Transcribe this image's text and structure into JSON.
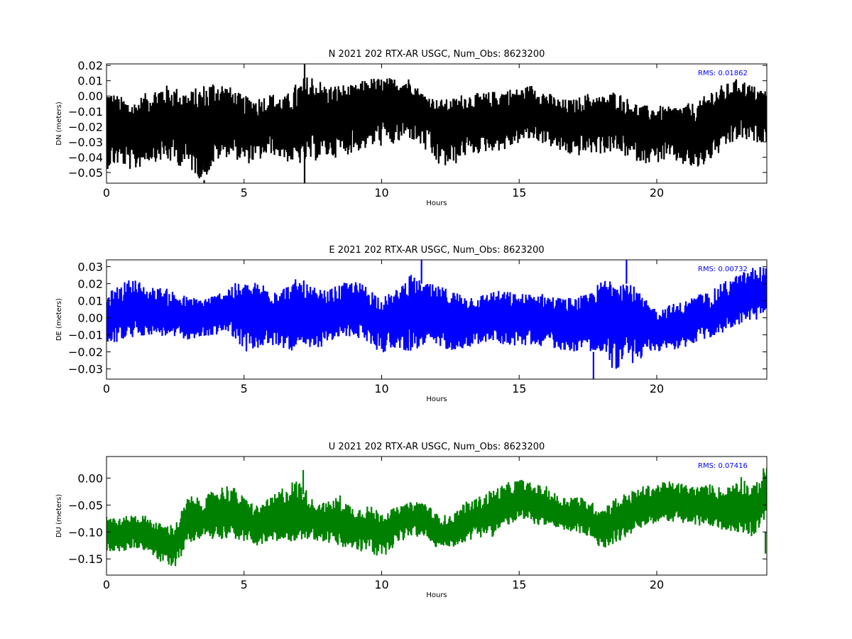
{
  "chart_data": [
    {
      "type": "line",
      "title": "N 2021 202 RTX-AR  USGC, Num_Obs: 8623200",
      "xlabel": "Hours",
      "ylabel": "DN (meters)",
      "xlim": [
        0,
        24
      ],
      "ylim": [
        -0.057,
        0.021
      ],
      "xticks": [
        0,
        5,
        10,
        15,
        20
      ],
      "xtick_labels": [
        "0",
        "5",
        "10",
        "15",
        "20"
      ],
      "yticks": [
        -0.05,
        -0.04,
        -0.03,
        -0.02,
        -0.01,
        0.0,
        0.01,
        0.02
      ],
      "ytick_labels": [
        "−0.05",
        "−0.04",
        "−0.03",
        "−0.02",
        "−0.01",
        "0.00",
        "0.01",
        "0.02"
      ],
      "annotation": "RMS:  0.01862",
      "annotation_color": "#0000ff",
      "series_color": "#000000",
      "grid": false,
      "x": [
        0,
        0.5,
        1,
        1.5,
        2,
        2.5,
        3,
        3.5,
        4,
        4.5,
        5,
        5.5,
        6,
        6.5,
        7,
        7.5,
        8,
        8.5,
        9,
        9.5,
        10,
        10.5,
        11,
        11.5,
        12,
        12.5,
        13,
        13.5,
        14,
        14.5,
        15,
        15.5,
        16,
        16.5,
        17,
        17.5,
        18,
        18.5,
        19,
        19.5,
        20,
        20.5,
        21,
        21.5,
        22,
        22.5,
        23,
        23.5,
        24
      ],
      "y_center": [
        -0.02,
        -0.022,
        -0.025,
        -0.02,
        -0.017,
        -0.016,
        -0.02,
        -0.025,
        -0.018,
        -0.014,
        -0.02,
        -0.022,
        -0.018,
        -0.02,
        -0.022,
        -0.016,
        -0.014,
        -0.013,
        -0.011,
        -0.007,
        -0.005,
        -0.006,
        -0.003,
        -0.008,
        -0.015,
        -0.018,
        -0.016,
        -0.016,
        -0.016,
        -0.013,
        -0.01,
        -0.01,
        -0.014,
        -0.018,
        -0.018,
        -0.016,
        -0.015,
        -0.016,
        -0.02,
        -0.023,
        -0.023,
        -0.022,
        -0.024,
        -0.025,
        -0.016,
        -0.012,
        -0.006,
        -0.01,
        -0.012
      ],
      "y_upper": [
        0.005,
        0.0,
        -0.003,
        0.003,
        0.008,
        0.006,
        0.003,
        0.008,
        0.012,
        0.006,
        0.0,
        0.0,
        0.002,
        0.0,
        0.011,
        0.015,
        0.007,
        0.008,
        0.007,
        0.012,
        0.012,
        0.012,
        0.012,
        0.002,
        -0.002,
        -0.002,
        0.002,
        0.002,
        0.003,
        0.005,
        0.005,
        0.008,
        0.003,
        -0.002,
        -0.002,
        0.002,
        0.0,
        0.004,
        -0.002,
        -0.006,
        -0.006,
        -0.007,
        -0.005,
        -0.004,
        0.005,
        0.008,
        0.012,
        0.007,
        0.004
      ],
      "y_lower": [
        -0.048,
        -0.045,
        -0.05,
        -0.043,
        -0.043,
        -0.045,
        -0.048,
        -0.056,
        -0.043,
        -0.039,
        -0.045,
        -0.043,
        -0.038,
        -0.043,
        -0.045,
        -0.043,
        -0.041,
        -0.04,
        -0.037,
        -0.035,
        -0.033,
        -0.033,
        -0.028,
        -0.035,
        -0.046,
        -0.048,
        -0.04,
        -0.038,
        -0.036,
        -0.036,
        -0.031,
        -0.029,
        -0.032,
        -0.037,
        -0.04,
        -0.038,
        -0.038,
        -0.037,
        -0.041,
        -0.044,
        -0.044,
        -0.042,
        -0.046,
        -0.049,
        -0.042,
        -0.035,
        -0.029,
        -0.031,
        -0.03
      ],
      "spikes": [
        {
          "x": 3.55,
          "y0": -0.055,
          "y1": -0.057
        },
        {
          "x": 7.2,
          "y0": -0.057,
          "y1": 0.021
        }
      ]
    },
    {
      "type": "line",
      "title": "E 2021 202 RTX-AR  USGC, Num_Obs: 8623200",
      "xlabel": "Hours",
      "ylabel": "DE (meters)",
      "xlim": [
        0,
        24
      ],
      "ylim": [
        -0.036,
        0.034
      ],
      "xticks": [
        0,
        5,
        10,
        15,
        20
      ],
      "xtick_labels": [
        "0",
        "5",
        "10",
        "15",
        "20"
      ],
      "yticks": [
        -0.03,
        -0.02,
        -0.01,
        0.0,
        0.01,
        0.02,
        0.03
      ],
      "ytick_labels": [
        "−0.03",
        "−0.02",
        "−0.01",
        "0.00",
        "0.01",
        "0.02",
        "0.03"
      ],
      "annotation": "RMS:  0.00732",
      "annotation_color": "#0000ff",
      "series_color": "#0000ff",
      "grid": false,
      "x": [
        0,
        0.5,
        1,
        1.5,
        2,
        2.5,
        3,
        3.5,
        4,
        4.5,
        5,
        5.5,
        6,
        6.5,
        7,
        7.5,
        8,
        8.5,
        9,
        9.5,
        10,
        10.5,
        11,
        11.5,
        12,
        12.5,
        13,
        13.5,
        14,
        14.5,
        15,
        15.5,
        16,
        16.5,
        17,
        17.5,
        18,
        18.5,
        19,
        19.5,
        20,
        20.5,
        21,
        21.5,
        22,
        22.5,
        23,
        23.5,
        24
      ],
      "y_center": [
        0.0,
        0.002,
        0.004,
        0.003,
        0.002,
        0.0,
        -0.001,
        0.0,
        0.002,
        0.004,
        0.0,
        0.001,
        0.0,
        0.0,
        -0.001,
        -0.002,
        0.0,
        0.004,
        0.005,
        0.002,
        -0.002,
        0.001,
        0.003,
        0.002,
        0.001,
        0.0,
        -0.001,
        0.0,
        0.002,
        0.001,
        0.0,
        0.001,
        0.0,
        -0.002,
        -0.002,
        0.0,
        0.003,
        0.002,
        0.0,
        -0.003,
        -0.006,
        -0.005,
        -0.004,
        -0.002,
        0.0,
        0.005,
        0.008,
        0.012,
        0.014
      ],
      "y_upper": [
        0.014,
        0.02,
        0.024,
        0.018,
        0.018,
        0.016,
        0.012,
        0.012,
        0.014,
        0.02,
        0.021,
        0.021,
        0.02,
        0.019,
        0.024,
        0.018,
        0.016,
        0.02,
        0.022,
        0.019,
        0.012,
        0.016,
        0.026,
        0.021,
        0.019,
        0.017,
        0.014,
        0.013,
        0.016,
        0.016,
        0.014,
        0.015,
        0.014,
        0.012,
        0.012,
        0.014,
        0.022,
        0.026,
        0.022,
        0.012,
        0.005,
        0.008,
        0.01,
        0.014,
        0.016,
        0.022,
        0.026,
        0.03,
        0.031
      ],
      "y_lower": [
        -0.016,
        -0.014,
        -0.012,
        -0.01,
        -0.011,
        -0.012,
        -0.013,
        -0.012,
        -0.01,
        -0.009,
        -0.02,
        -0.019,
        -0.017,
        -0.018,
        -0.021,
        -0.019,
        -0.016,
        -0.012,
        -0.011,
        -0.015,
        -0.021,
        -0.018,
        -0.02,
        -0.018,
        -0.017,
        -0.019,
        -0.018,
        -0.016,
        -0.014,
        -0.016,
        -0.017,
        -0.016,
        -0.017,
        -0.019,
        -0.02,
        -0.018,
        -0.026,
        -0.031,
        -0.028,
        -0.024,
        -0.02,
        -0.019,
        -0.018,
        -0.014,
        -0.012,
        -0.008,
        -0.004,
        -0.002,
        0.0
      ],
      "spikes": [
        {
          "x": 11.45,
          "y0": 0.02,
          "y1": 0.034
        },
        {
          "x": 17.7,
          "y0": -0.02,
          "y1": -0.036
        },
        {
          "x": 18.9,
          "y0": 0.02,
          "y1": 0.034
        }
      ]
    },
    {
      "type": "line",
      "title": "U 2021 202 RTX-AR  USGC, Num_Obs: 8623200",
      "xlabel": "Hours",
      "ylabel": "DU (meters)",
      "xlim": [
        0,
        24
      ],
      "ylim": [
        -0.18,
        0.04
      ],
      "xticks": [
        0,
        5,
        10,
        15,
        20
      ],
      "xtick_labels": [
        "0",
        "5",
        "10",
        "15",
        "20"
      ],
      "yticks": [
        -0.15,
        -0.1,
        -0.05,
        0.0
      ],
      "ytick_labels": [
        "−0.15",
        "−0.10",
        "−0.05",
        "0.00"
      ],
      "annotation": "RMS:  0.07416",
      "annotation_color": "#0000ff",
      "series_color": "#008000",
      "grid": false,
      "x": [
        0,
        0.5,
        1,
        1.5,
        2,
        2.5,
        3,
        3.5,
        4,
        4.5,
        5,
        5.5,
        6,
        6.5,
        7,
        7.5,
        8,
        8.5,
        9,
        9.5,
        10,
        10.5,
        11,
        11.5,
        12,
        12.5,
        13,
        13.5,
        14,
        14.5,
        15,
        15.5,
        16,
        16.5,
        17,
        17.5,
        18,
        18.5,
        19,
        19.5,
        20,
        20.5,
        21,
        21.5,
        22,
        22.5,
        23,
        23.5,
        24
      ],
      "y_center": [
        -0.1,
        -0.105,
        -0.1,
        -0.105,
        -0.12,
        -0.12,
        -0.085,
        -0.075,
        -0.07,
        -0.065,
        -0.08,
        -0.09,
        -0.08,
        -0.075,
        -0.07,
        -0.075,
        -0.08,
        -0.085,
        -0.09,
        -0.09,
        -0.1,
        -0.085,
        -0.075,
        -0.07,
        -0.1,
        -0.1,
        -0.085,
        -0.075,
        -0.07,
        -0.055,
        -0.045,
        -0.05,
        -0.055,
        -0.07,
        -0.065,
        -0.075,
        -0.09,
        -0.08,
        -0.07,
        -0.055,
        -0.045,
        -0.045,
        -0.05,
        -0.055,
        -0.055,
        -0.06,
        -0.05,
        -0.065,
        -0.035
      ],
      "y_upper": [
        -0.065,
        -0.075,
        -0.065,
        -0.07,
        -0.085,
        -0.085,
        -0.03,
        -0.04,
        -0.015,
        -0.01,
        -0.035,
        -0.05,
        -0.035,
        -0.01,
        0.0,
        -0.04,
        -0.045,
        -0.03,
        -0.055,
        -0.05,
        -0.06,
        -0.055,
        -0.045,
        -0.04,
        -0.065,
        -0.07,
        -0.045,
        -0.035,
        -0.02,
        -0.01,
        0.0,
        -0.01,
        -0.015,
        -0.035,
        -0.03,
        -0.04,
        -0.055,
        -0.035,
        -0.025,
        -0.015,
        -0.01,
        -0.005,
        -0.01,
        -0.015,
        -0.01,
        -0.02,
        0.01,
        -0.015,
        0.03
      ],
      "y_lower": [
        -0.135,
        -0.14,
        -0.13,
        -0.135,
        -0.16,
        -0.165,
        -0.12,
        -0.11,
        -0.115,
        -0.11,
        -0.12,
        -0.125,
        -0.12,
        -0.12,
        -0.115,
        -0.115,
        -0.12,
        -0.13,
        -0.135,
        -0.14,
        -0.15,
        -0.125,
        -0.11,
        -0.11,
        -0.13,
        -0.13,
        -0.12,
        -0.11,
        -0.11,
        -0.09,
        -0.08,
        -0.085,
        -0.09,
        -0.1,
        -0.1,
        -0.11,
        -0.135,
        -0.12,
        -0.11,
        -0.09,
        -0.085,
        -0.08,
        -0.085,
        -0.09,
        -0.09,
        -0.1,
        -0.1,
        -0.11,
        -0.07
      ],
      "spikes": [
        {
          "x": 7.15,
          "y0": -0.03,
          "y1": 0.015
        },
        {
          "x": 23.95,
          "y0": -0.1,
          "y1": -0.14
        }
      ]
    }
  ]
}
